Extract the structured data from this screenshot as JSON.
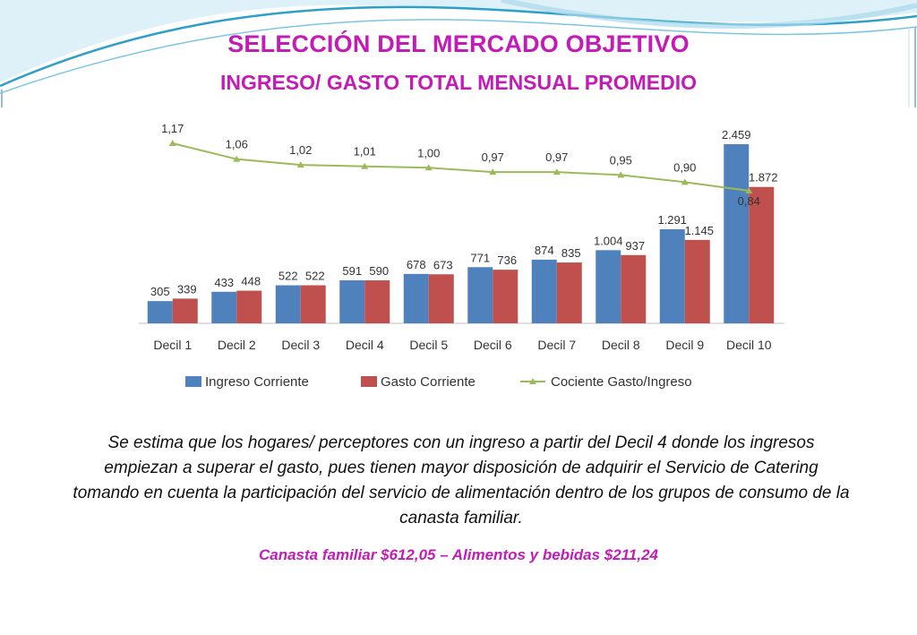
{
  "slide": {
    "title": "SELECCIÓN DEL MERCADO OBJETIVO",
    "subtitle": "INGRESO/ GASTO TOTAL MENSUAL PROMEDIO",
    "caption": "Se estima que los hogares/ perceptores con un ingreso a partir del Decil 4 donde los ingresos empiezan a superar el gasto, pues tienen mayor disposición de adquirir el Servicio de Catering tomando en cuenta la participación del servicio de alimentación dentro de los grupos de consumo de la canasta familiar.",
    "highlight": "Canasta familiar $612,05 – Alimentos y bebidas $211,24",
    "colors": {
      "title": "#c21bb6",
      "accent_frame": "#2e9fc9"
    }
  },
  "chart_data": {
    "type": "bar",
    "categories": [
      "Decil 1",
      "Decil 2",
      "Decil 3",
      "Decil 4",
      "Decil 5",
      "Decil 6",
      "Decil 7",
      "Decil 8",
      "Decil 9",
      "Decil 10"
    ],
    "series": [
      {
        "name": "Ingreso Corriente",
        "color": "#4f81bd",
        "values": [
          305,
          433,
          522,
          591,
          678,
          771,
          874,
          1004,
          1291,
          2459
        ],
        "labels": [
          "305",
          "433",
          "522",
          "591",
          "678",
          "771",
          "874",
          "1.004",
          "1.291",
          "2.459"
        ]
      },
      {
        "name": "Gasto Corriente",
        "color": "#c0504d",
        "values": [
          339,
          448,
          522,
          590,
          673,
          736,
          835,
          937,
          1145,
          1872
        ],
        "labels": [
          "339",
          "448",
          "522",
          "590",
          "673",
          "736",
          "835",
          "937",
          "1.145",
          "1.872"
        ]
      },
      {
        "name": "Cociente Gasto/Ingreso",
        "type": "line",
        "color": "#9bbb59",
        "values": [
          1.17,
          1.06,
          1.02,
          1.01,
          1.0,
          0.97,
          0.97,
          0.95,
          0.9,
          0.84
        ],
        "labels": [
          "1,17",
          "1,06",
          "1,02",
          "1,01",
          "1,00",
          "0,97",
          "0,97",
          "0,95",
          "0,90",
          "0,84"
        ]
      }
    ],
    "legend_position": "bottom",
    "grid": false
  }
}
